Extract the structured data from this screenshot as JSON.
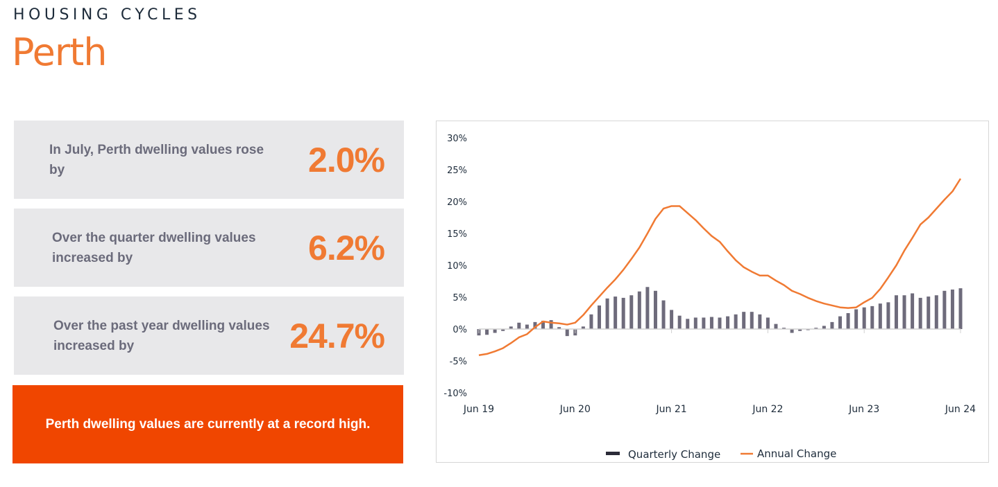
{
  "header": {
    "kicker": "HOUSING CYCLES",
    "city": "Perth"
  },
  "cards": [
    {
      "text": "In July, Perth dwelling values rose by",
      "value": "2.0%"
    },
    {
      "text": "Over the quarter dwelling values increased by",
      "value": "6.2%"
    },
    {
      "text": "Over the past year dwelling values increased by",
      "value": "24.7%"
    }
  ],
  "banner": "Perth dwelling values are currently at a record high.",
  "colors": {
    "accent": "#f07a33",
    "banner": "#f04600",
    "bars": "#6e6b7b",
    "card_bg": "#e8e8ea"
  },
  "chart_data": {
    "type": "bar+line",
    "x_start": "Jun 19",
    "x_end": "Jun 24",
    "frequency": "monthly",
    "xticks": [
      "Jun 19",
      "Jun 20",
      "Jun 21",
      "Jun 22",
      "Jun 23",
      "Jun 24"
    ],
    "yticks": [
      "30%",
      "25%",
      "20%",
      "15%",
      "10%",
      "5%",
      "0%",
      "-5%",
      "-10%"
    ],
    "ylim": [
      -10,
      30
    ],
    "legend_position": "bottom",
    "series": [
      {
        "name": "Quarterly Change",
        "type": "bar",
        "values": [
          -1.0,
          -0.9,
          -0.6,
          -0.3,
          0.4,
          1.0,
          0.7,
          1.1,
          1.3,
          1.4,
          0.3,
          -1.1,
          -1.0,
          0.4,
          2.3,
          3.7,
          4.8,
          5.1,
          4.9,
          5.3,
          5.9,
          6.6,
          6.0,
          4.5,
          3.0,
          2.1,
          1.6,
          1.8,
          1.8,
          1.9,
          1.8,
          2.0,
          2.3,
          2.7,
          2.7,
          2.3,
          1.8,
          0.8,
          0.2,
          -0.6,
          -0.3,
          -0.1,
          0.2,
          0.5,
          1.1,
          2.0,
          2.5,
          3.1,
          3.4,
          3.6,
          4.0,
          4.2,
          5.3,
          5.3,
          5.6,
          4.9,
          5.1,
          5.3,
          6.0,
          6.2,
          6.4
        ]
      },
      {
        "name": "Annual Change",
        "type": "line",
        "values": [
          -4.1,
          -3.9,
          -3.5,
          -3.0,
          -2.2,
          -1.3,
          -0.8,
          0.3,
          1.2,
          1.0,
          0.9,
          0.7,
          1.0,
          2.2,
          3.7,
          5.1,
          6.5,
          7.8,
          9.3,
          11.0,
          12.8,
          15.0,
          17.3,
          18.9,
          19.3,
          19.3,
          18.2,
          17.1,
          15.8,
          14.6,
          13.7,
          12.2,
          10.8,
          9.7,
          9.0,
          8.4,
          8.4,
          7.6,
          6.9,
          6.0,
          5.5,
          4.9,
          4.4,
          4.0,
          3.7,
          3.4,
          3.3,
          3.4,
          4.2,
          4.9,
          6.3,
          8.1,
          10.0,
          12.3,
          14.3,
          16.4,
          17.5,
          18.9,
          20.3,
          21.6,
          23.6
        ]
      }
    ]
  }
}
